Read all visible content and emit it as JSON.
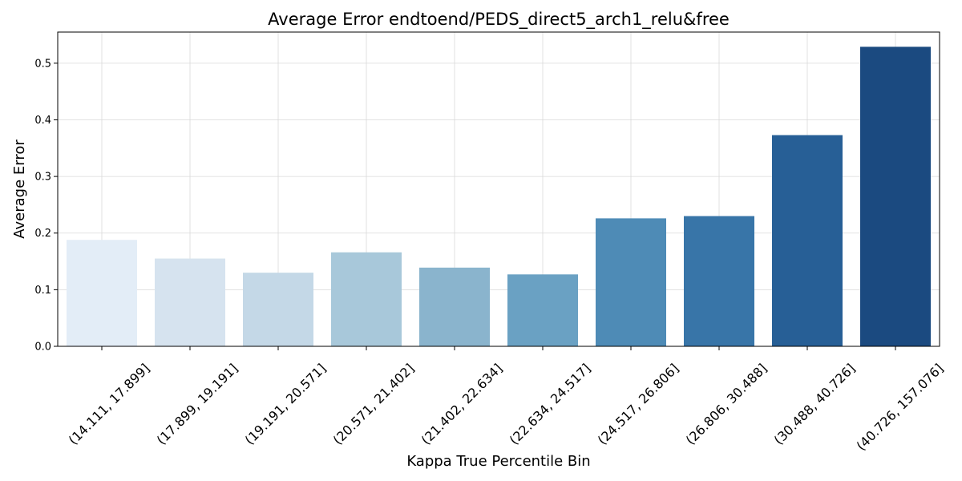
{
  "chart_data": {
    "type": "bar",
    "title": "Average Error endtoend/PEDS_direct5_arch1_relu&free",
    "xlabel": "Kappa True Percentile Bin",
    "ylabel": "Average Error",
    "categories": [
      "(14.111, 17.899]",
      "(17.899, 19.191]",
      "(19.191, 20.571]",
      "(20.571, 21.402]",
      "(21.402, 22.634]",
      "(22.634, 24.517]",
      "(24.517, 26.806]",
      "(26.806, 30.488]",
      "(30.488, 40.726]",
      "(40.726, 157.076]"
    ],
    "values": [
      0.188,
      0.155,
      0.13,
      0.166,
      0.139,
      0.127,
      0.226,
      0.23,
      0.373,
      0.529
    ],
    "colors": [
      "#e3edf7",
      "#d6e3ef",
      "#c4d8e7",
      "#a8c8da",
      "#8ab4cd",
      "#6aa1c3",
      "#4e8bb6",
      "#3875a8",
      "#275f96",
      "#1b4a80"
    ],
    "ylim": [
      0,
      0.555
    ],
    "yticks": [
      "0.0",
      "0.1",
      "0.2",
      "0.3",
      "0.4",
      "0.5"
    ],
    "grid": true
  }
}
